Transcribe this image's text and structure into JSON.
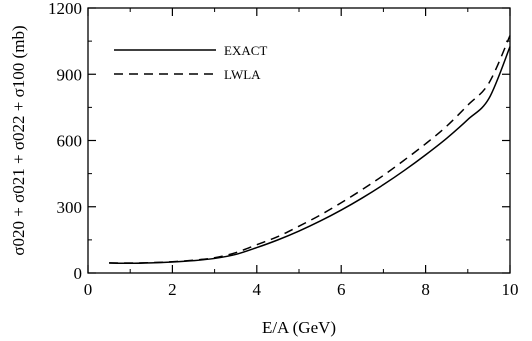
{
  "chart_data": {
    "type": "line",
    "xlabel": "E/A  (GeV)",
    "ylabel": "σ020 + σ021 + σ022 + σ100  (mb)",
    "xlim": [
      0,
      10
    ],
    "ylim": [
      0,
      1200
    ],
    "xticks": [
      "0",
      "2",
      "4",
      "6",
      "8",
      "10"
    ],
    "yticks": [
      "0",
      "300",
      "600",
      "900",
      "1200"
    ],
    "grid": false,
    "legend_position": "top-left",
    "series": [
      {
        "name": "EXACT",
        "style": "solid",
        "color": "#000000",
        "x": [
          0.5,
          1,
          1.5,
          2,
          2.5,
          3,
          3.5,
          4,
          4.5,
          5,
          5.5,
          6,
          6.5,
          7,
          7.5,
          8,
          8.5,
          9,
          9.5,
          10
        ],
        "y": [
          45,
          44,
          46,
          50,
          56,
          66,
          84,
          115,
          150,
          190,
          235,
          285,
          340,
          400,
          465,
          535,
          610,
          695,
          790,
          1025
        ]
      },
      {
        "name": "LWLA",
        "style": "dashed",
        "color": "#000000",
        "x": [
          0.5,
          1,
          1.5,
          2,
          2.5,
          3,
          3.5,
          4,
          4.5,
          5,
          5.5,
          6,
          6.5,
          7,
          7.5,
          8,
          8.5,
          9,
          9.5,
          10
        ],
        "y": [
          46,
          45,
          47,
          51,
          58,
          69,
          92,
          128,
          165,
          212,
          262,
          318,
          378,
          442,
          512,
          585,
          665,
          760,
          860,
          1075
        ]
      }
    ]
  }
}
